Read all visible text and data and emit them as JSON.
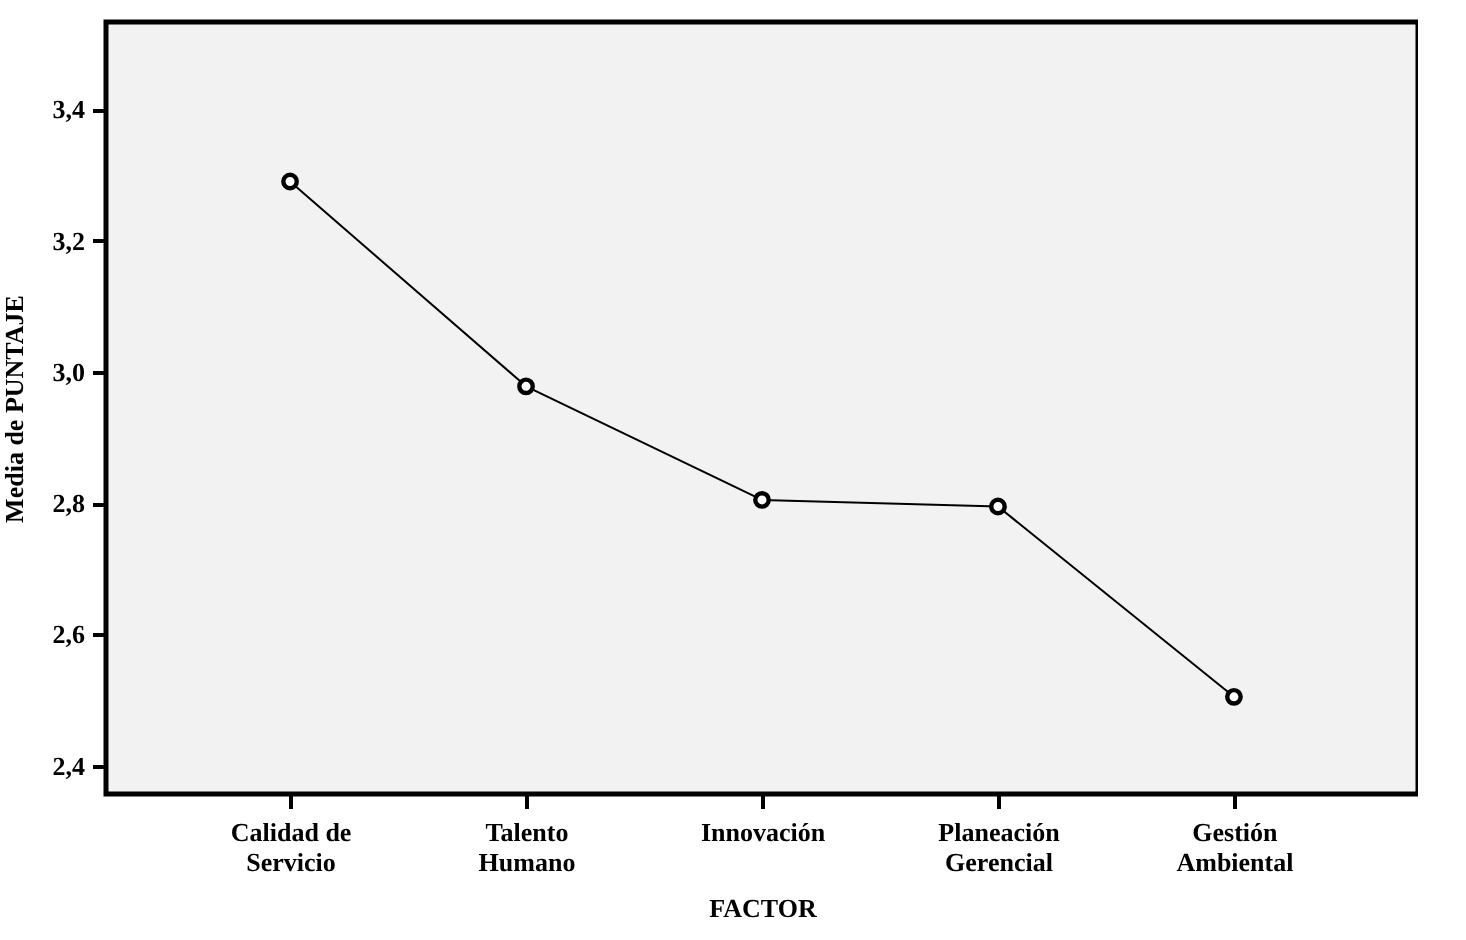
{
  "chart_data": {
    "type": "line",
    "xlabel": "FACTOR",
    "ylabel": "Media de PUNTAJE",
    "categories": [
      "Calidad de Servicio",
      "Talento Humano",
      "Innovación",
      "Planeación Gerencial",
      "Gestión Ambiental"
    ],
    "series": [
      {
        "color": "#000000",
        "values": [
          3.29,
          2.978,
          2.805,
          2.795,
          2.505
        ]
      }
    ],
    "ylim": [
      2.357,
      3.533
    ],
    "yticks": [
      {
        "value": 2.4,
        "label": "2,4"
      },
      {
        "value": 2.6,
        "label": "2,6"
      },
      {
        "value": 2.8,
        "label": "2,8"
      },
      {
        "value": 3.0,
        "label": "3,0"
      },
      {
        "value": 3.2,
        "label": "3,2"
      },
      {
        "value": 3.4,
        "label": "3,4"
      }
    ],
    "grid": false,
    "marker": "circle",
    "line_style": "solid"
  }
}
